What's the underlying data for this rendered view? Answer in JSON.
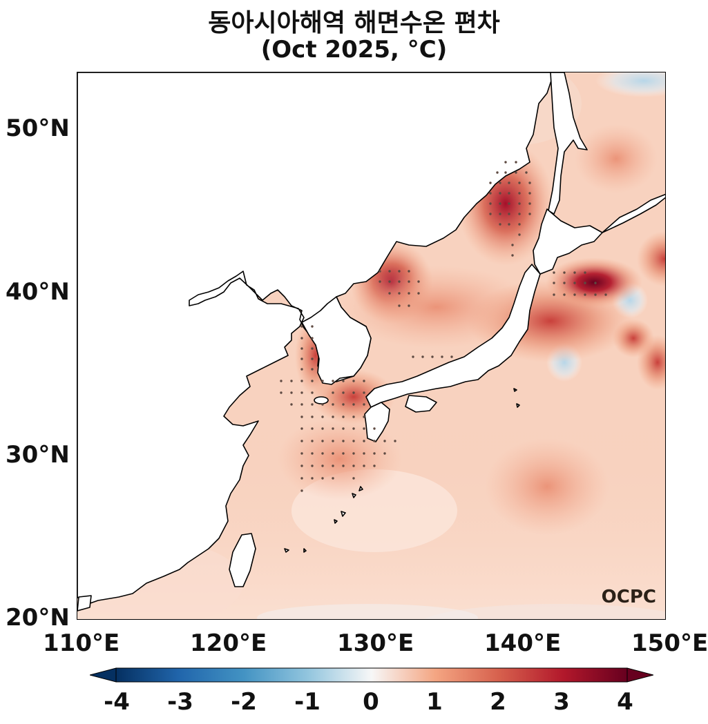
{
  "title": {
    "line1": "동아시아해역 해면수온 편차",
    "line2": "(Oct 2025, °C)"
  },
  "map": {
    "region": "East Asian seas",
    "lon_range": [
      110,
      150
    ],
    "lat_range": [
      20,
      53.5
    ],
    "lat_ticks": [
      {
        "value": 50,
        "label": "50°N"
      },
      {
        "value": 40,
        "label": "40°N"
      },
      {
        "value": 30,
        "label": "30°N"
      },
      {
        "value": 20,
        "label": "20°N"
      }
    ],
    "lon_ticks": [
      {
        "value": 110,
        "label": "110°E"
      },
      {
        "value": 120,
        "label": "120°E"
      },
      {
        "value": 130,
        "label": "130°E"
      },
      {
        "value": 140,
        "label": "140°E"
      },
      {
        "value": 150,
        "label": "150°E"
      }
    ],
    "logo": "OCPC",
    "ocean_base_color": "#f8d2bf",
    "land_color": "#ffffff",
    "stippling": "dots mark significant anomalies"
  },
  "colorbar": {
    "min": -4,
    "max": 4,
    "colormap": "RdBu_r",
    "extend": "both",
    "ticks": [
      "-4",
      "-3",
      "-2",
      "-1",
      "0",
      "1",
      "2",
      "3",
      "4"
    ],
    "colors": {
      "neg4": "#053061",
      "neg2": "#4393c3",
      "zero": "#f7f7f7",
      "pos2": "#f4a582",
      "pos4": "#67001f"
    }
  },
  "chart_data": {
    "type": "heatmap",
    "variable": "SST anomaly (°C)",
    "hotspots": [
      {
        "lon": 144.0,
        "lat": 40.5,
        "value": 4.0
      },
      {
        "lon": 139.0,
        "lat": 45.5,
        "value": 3.2
      },
      {
        "lon": 132.0,
        "lat": 40.5,
        "value": 2.8
      },
      {
        "lon": 126.0,
        "lat": 36.0,
        "value": 2.5
      },
      {
        "lon": 128.0,
        "lat": 33.5,
        "value": 2.2
      },
      {
        "lon": 150.0,
        "lat": 42.0,
        "value": 2.4
      },
      {
        "lon": 147.0,
        "lat": 37.5,
        "value": 2.0
      },
      {
        "lon": 143.0,
        "lat": 28.0,
        "value": 1.6
      },
      {
        "lon": 147.0,
        "lat": 48.0,
        "value": 1.8
      },
      {
        "lon": 147.5,
        "lat": 39.5,
        "value": -0.6
      },
      {
        "lon": 143.0,
        "lat": 36.0,
        "value": -0.3
      },
      {
        "lon": 148.0,
        "lat": 53.0,
        "value": -0.2
      }
    ]
  }
}
